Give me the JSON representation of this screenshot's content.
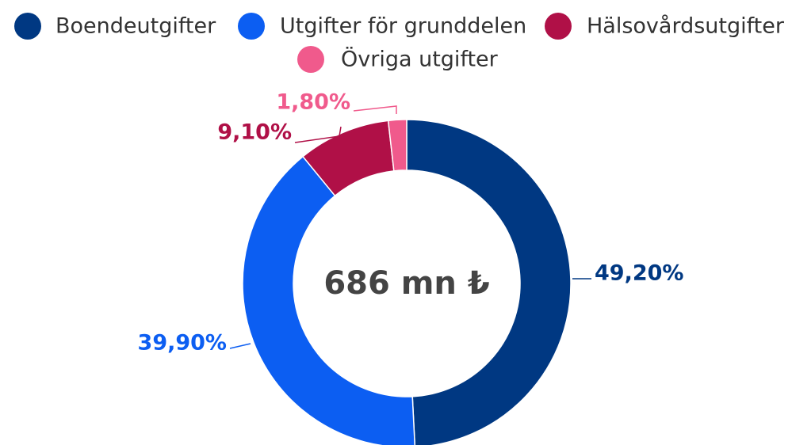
{
  "chart_data": {
    "type": "pie",
    "categories": [
      "Boendeutgifter",
      "Utgifter för grunddelen",
      "Hälsovårdsutgifter",
      "Övriga utgifter"
    ],
    "values": [
      49.2,
      39.9,
      9.1,
      1.8
    ],
    "value_labels": [
      "49,20%",
      "39,90%",
      "9,10%",
      "1,80%"
    ],
    "colors": [
      "#003882",
      "#0c5ef2",
      "#b01047",
      "#f05a8c"
    ],
    "center_label": "686 mn ₺",
    "legend": "top"
  }
}
